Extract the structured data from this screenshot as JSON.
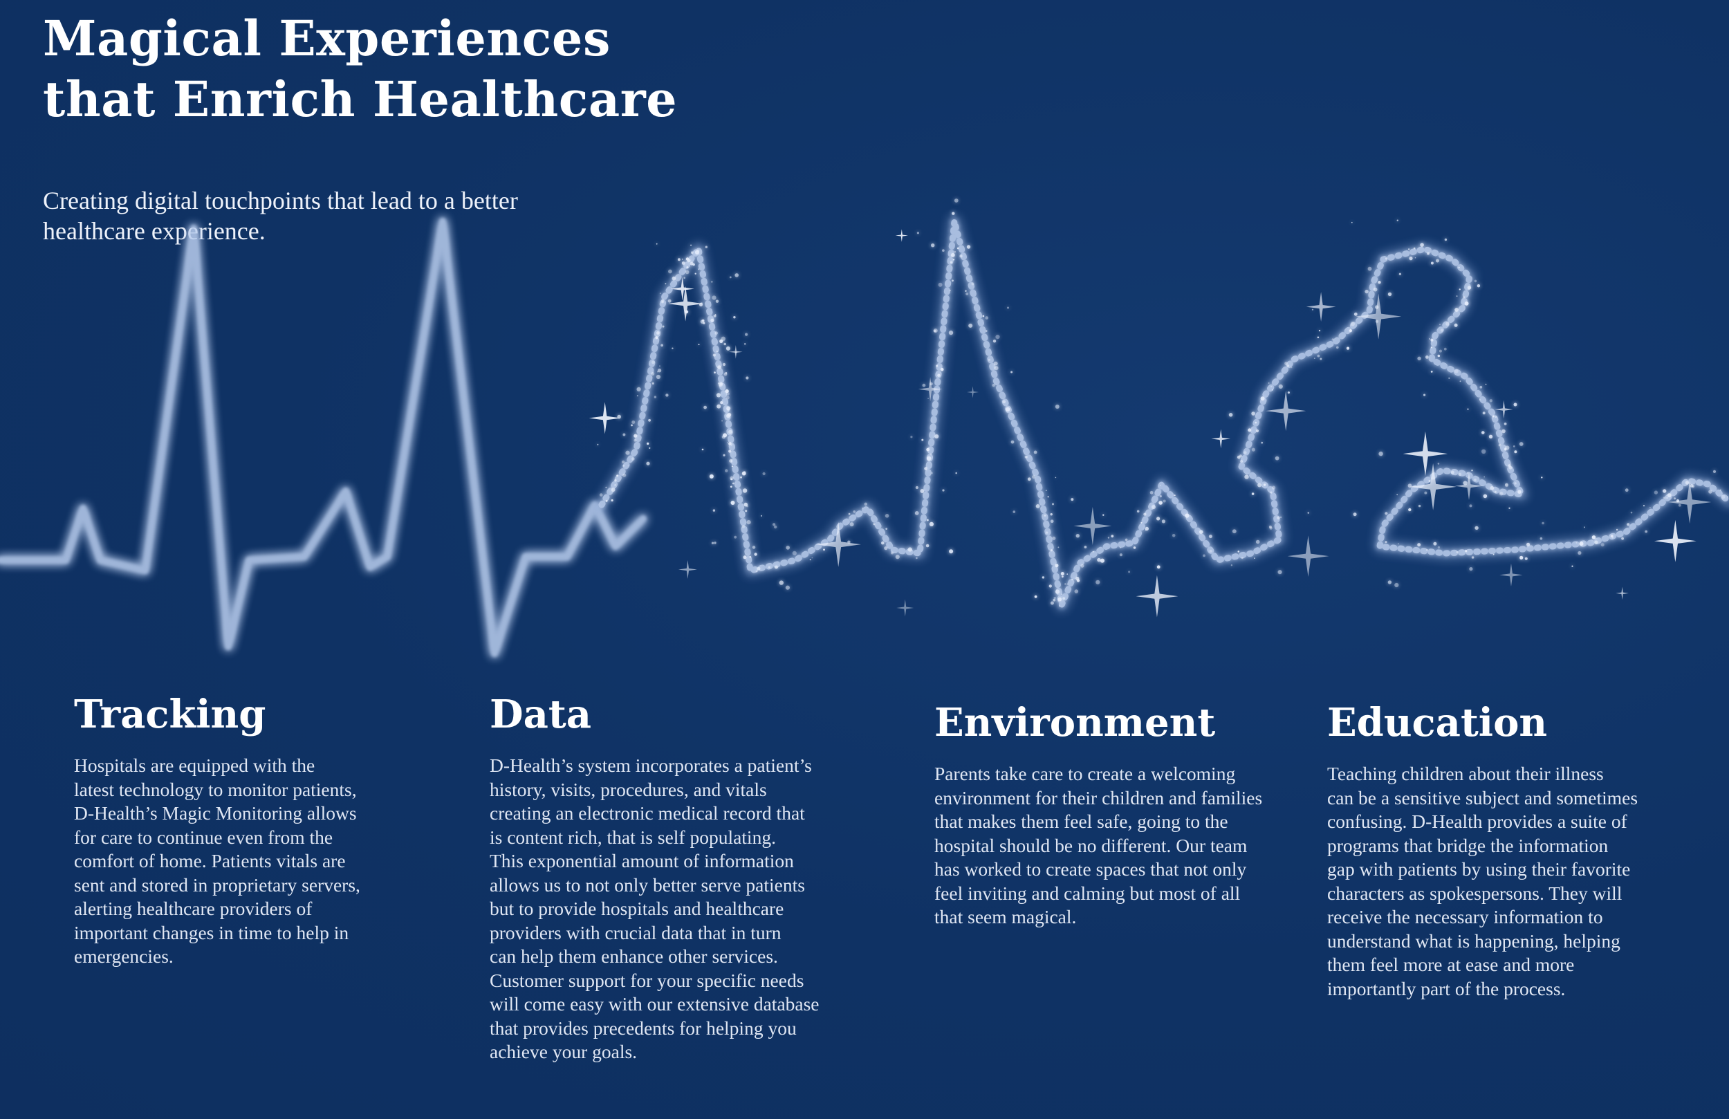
{
  "header": {
    "title_lines": [
      "Magical Experiences",
      "that Enrich Healthcare"
    ],
    "subtitle_lines": [
      "Creating digital touchpoints that lead to a better",
      "healthcare experience."
    ]
  },
  "sections": [
    {
      "id": "tracking",
      "heading": "Tracking",
      "lines": [
        "Hospitals are equipped with the",
        "latest technology to monitor patients,",
        "D-Health’s Magic Monitoring allows",
        "for care to continue even from the",
        "comfort of home. Patients vitals are",
        "sent and stored in proprietary servers,",
        "alerting healthcare providers of",
        "important changes in time to help in",
        "emergencies."
      ]
    },
    {
      "id": "data",
      "heading": "Data",
      "lines": [
        "D-Health’s system incorporates a patient’s",
        "history, visits, procedures, and vitals",
        "creating an electronic medical record that",
        "is content rich, that is self populating.",
        "This exponential amount of information",
        "allows us to not only better serve patients",
        "but to provide hospitals and healthcare",
        "providers with crucial data that in turn",
        "can help them enhance other services.",
        "Customer support for your specific needs",
        "will come easy with our extensive database",
        "that provides precedents for helping you",
        "achieve your goals."
      ]
    },
    {
      "id": "environment",
      "heading": "Environment",
      "lines": [
        "Parents take care to create a welcoming",
        "environment for their children and families",
        "that makes them feel safe, going to the",
        "hospital should be no different. Our team",
        "has worked to create spaces that not only",
        "feel inviting and calming but most of all",
        "that seem magical."
      ]
    },
    {
      "id": "education",
      "heading": "Education",
      "lines": [
        "Teaching children about their illness",
        "can be a sensitive subject and sometimes",
        "confusing. D-Health provides a suite of",
        "programs that bridge the information",
        "gap with patients by using their favorite",
        "characters as spokespersons. They will",
        "receive the necessary information to",
        "understand what is happening, helping",
        "them feel more at ease and more",
        "importantly part of the process."
      ]
    }
  ],
  "colors": {
    "background": "#0f3264",
    "text": "#ffffff",
    "body_text": "#dfe6f3",
    "glow": "#b9cdee"
  }
}
